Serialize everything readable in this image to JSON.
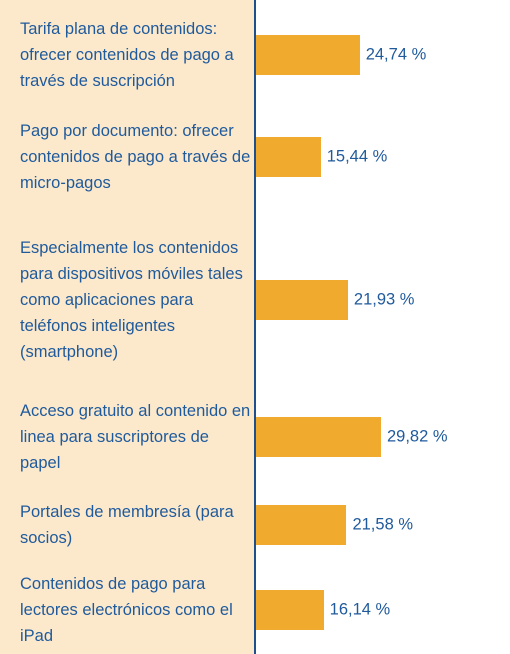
{
  "chart_data": {
    "type": "bar",
    "orientation": "horizontal",
    "categories": [
      "Tarifa plana de contenidos: ofrecer contenidos de pago a través de suscripción",
      "Pago por documento: ofrecer contenidos de pago a través de micro-pagos",
      "Especialmente los contenidos para dispositivos móviles tales como aplicaciones para teléfonos inteligentes (smartphone)",
      "Acceso gratuito al contenido en linea para suscriptores de papel",
      "Portales de membresía (para socios)",
      "Contenidos de pago para lectores electrónicos como el iPad"
    ],
    "values": [
      24.74,
      15.44,
      21.93,
      29.82,
      21.58,
      16.14
    ],
    "value_labels": [
      "24,74 %",
      "15,44 %",
      "21,93 %",
      "29,82 %",
      "21,58 %",
      "16,14 %"
    ],
    "color": "#f0ab2f"
  }
}
